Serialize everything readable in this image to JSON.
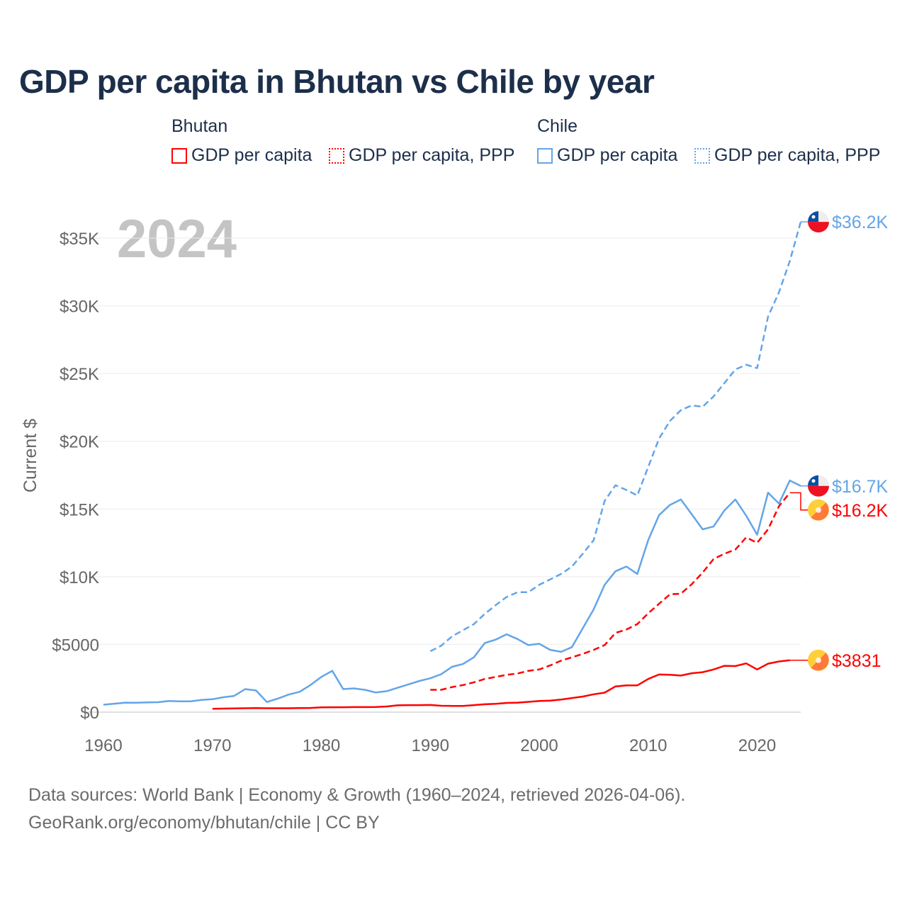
{
  "title": "GDP per capita in Bhutan vs Chile by year",
  "legend": {
    "groups": [
      {
        "name": "Bhutan",
        "items": [
          "GDP per capita",
          "GDP per capita, PPP"
        ],
        "color": "#ff0000"
      },
      {
        "name": "Chile",
        "items": [
          "GDP per capita",
          "GDP per capita, PPP"
        ],
        "color": "#63a5e8"
      }
    ]
  },
  "year_label": "2024",
  "footer": [
    "Data sources: World Bank | Economy & Growth (1960–2024, retrieved 2026-04-06).",
    "GeoRank.org/economy/bhutan/chile | CC BY"
  ],
  "chart_data": {
    "type": "line",
    "title": "GDP per capita in Bhutan vs Chile by year",
    "xlabel": "",
    "ylabel": "Current $",
    "xlim": [
      1960,
      2024
    ],
    "ylim": [
      0,
      35000
    ],
    "x_ticks": [
      1960,
      1970,
      1980,
      1990,
      2000,
      2010,
      2020
    ],
    "y_ticks": [
      {
        "v": 0,
        "l": "$0"
      },
      {
        "v": 5000,
        "l": "$5000"
      },
      {
        "v": 10000,
        "l": "$10K"
      },
      {
        "v": 15000,
        "l": "$15K"
      },
      {
        "v": 20000,
        "l": "$20K"
      },
      {
        "v": 25000,
        "l": "$25K"
      },
      {
        "v": 30000,
        "l": "$30K"
      },
      {
        "v": 35000,
        "l": "$35K"
      }
    ],
    "grid": true,
    "legend_placement": "top",
    "series": [
      {
        "name": "Chile GDP per capita, PPP",
        "country": "Chile",
        "color": "#63a5e8",
        "dashed": true,
        "start": 1990,
        "end_label": "$36.2K",
        "values": [
          4500,
          4900,
          5600,
          6050,
          6500,
          7250,
          7900,
          8500,
          8850,
          8850,
          9400,
          9800,
          10200,
          10750,
          11700,
          12700,
          15600,
          16750,
          16400,
          16000,
          18100,
          20200,
          21500,
          22300,
          22650,
          22550,
          23300,
          24300,
          25300,
          25650,
          25400,
          29200,
          31000,
          33300,
          36200
        ]
      },
      {
        "name": "Chile GDP per capita",
        "country": "Chile",
        "color": "#63a5e8",
        "dashed": false,
        "start": 1960,
        "end_label": "$16.7K",
        "values": [
          550,
          620,
          700,
          690,
          720,
          730,
          820,
          800,
          800,
          900,
          950,
          1100,
          1200,
          1700,
          1600,
          750,
          1000,
          1300,
          1500,
          2000,
          2600,
          3050,
          1700,
          1750,
          1650,
          1450,
          1550,
          1800,
          2050,
          2300,
          2500,
          2800,
          3350,
          3550,
          4050,
          5100,
          5350,
          5750,
          5400,
          4950,
          5050,
          4600,
          4450,
          4800,
          6200,
          7600,
          9400,
          10400,
          10750,
          10200,
          12700,
          14550,
          15300,
          15700,
          14600,
          13500,
          13700,
          14900,
          15700,
          14500,
          13100,
          16200,
          15400,
          17100,
          16700
        ]
      },
      {
        "name": "Bhutan GDP per capita, PPP",
        "country": "Bhutan",
        "color": "#ff0000",
        "dashed": true,
        "start": 1990,
        "end_label": "$16.2K",
        "values": [
          1650,
          1650,
          1850,
          2000,
          2200,
          2450,
          2600,
          2750,
          2850,
          3050,
          3150,
          3450,
          3800,
          4050,
          4300,
          4600,
          4950,
          5850,
          6100,
          6500,
          7300,
          8000,
          8700,
          8750,
          9450,
          10300,
          11300,
          11700,
          12000,
          12900,
          12500,
          13500,
          15200,
          16200
        ]
      },
      {
        "name": "Bhutan GDP per capita",
        "country": "Bhutan",
        "color": "#ff0000",
        "dashed": false,
        "start": 1970,
        "end_label": "$3831",
        "values": [
          250,
          260,
          270,
          290,
          300,
          290,
          290,
          290,
          300,
          310,
          350,
          360,
          360,
          370,
          370,
          380,
          420,
          500,
          520,
          520,
          530,
          470,
          460,
          460,
          520,
          580,
          610,
          680,
          700,
          760,
          820,
          850,
          930,
          1040,
          1150,
          1320,
          1440,
          1900,
          1970,
          1970,
          2450,
          2780,
          2760,
          2700,
          2870,
          2950,
          3150,
          3420,
          3400,
          3600,
          3150,
          3580,
          3740,
          3831
        ]
      }
    ]
  }
}
